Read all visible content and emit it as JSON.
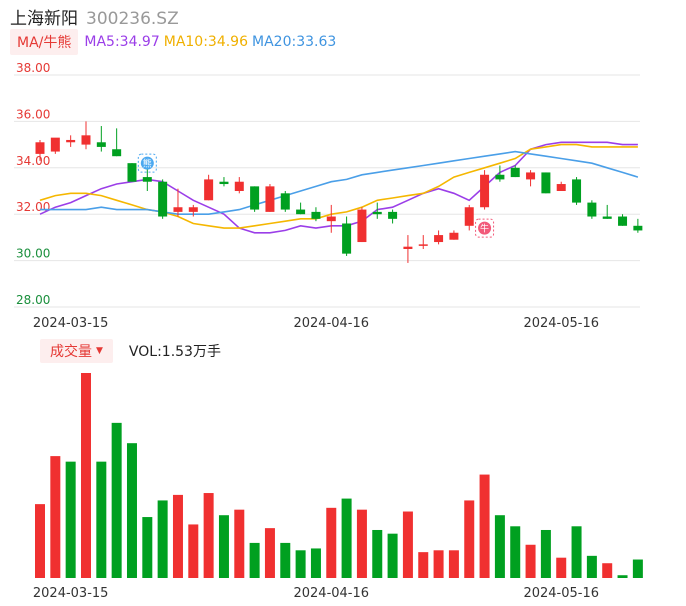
{
  "header": {
    "stock_name": "上海新阳",
    "stock_code": "300236.SZ"
  },
  "ma_legend": {
    "mode_label": "MA/牛熊",
    "ma5": "MA5:34.97",
    "ma10": "MA10:34.96",
    "ma20": "MA20:33.63"
  },
  "volume_legend": {
    "button_label": "成交量",
    "vol_text": "VOL:1.53万手"
  },
  "markers": {
    "bear": "熊",
    "bull": "牛"
  },
  "colors": {
    "up": "#f03030",
    "down": "#00a020",
    "ma5": "#9b3ee8",
    "ma10": "#f5b700",
    "ma20": "#4a9fe8",
    "axis_text_red": "#e53935",
    "axis_text_green": "#1a8f3c",
    "grid": "#e6e6e6"
  },
  "chart_data": [
    {
      "type": "candlestick",
      "ylim": [
        28.0,
        38.0
      ],
      "y_ticks": [
        "38.00",
        "36.00",
        "34.00",
        "32.00",
        "30.00",
        "28.00"
      ],
      "x_tick_labels": [
        "2024-03-15",
        "2024-04-16",
        "2024-05-16"
      ],
      "x_tick_indices": [
        2,
        19,
        34
      ],
      "grid": true,
      "candles": [
        {
          "o": 34.6,
          "h": 35.2,
          "l": 34.3,
          "c": 35.1
        },
        {
          "o": 34.7,
          "h": 35.2,
          "l": 34.6,
          "c": 35.3
        },
        {
          "o": 35.1,
          "h": 35.4,
          "l": 34.9,
          "c": 35.2
        },
        {
          "o": 35.0,
          "h": 36.0,
          "l": 34.8,
          "c": 35.4
        },
        {
          "o": 35.1,
          "h": 35.8,
          "l": 34.7,
          "c": 34.9
        },
        {
          "o": 34.8,
          "h": 35.7,
          "l": 34.5,
          "c": 34.5
        },
        {
          "o": 34.2,
          "h": 34.2,
          "l": 33.4,
          "c": 33.4
        },
        {
          "o": 33.6,
          "h": 34.0,
          "l": 33.0,
          "c": 33.4
        },
        {
          "o": 33.4,
          "h": 33.5,
          "l": 31.8,
          "c": 31.9
        },
        {
          "o": 32.1,
          "h": 33.1,
          "l": 31.9,
          "c": 32.3
        },
        {
          "o": 32.1,
          "h": 32.4,
          "l": 31.9,
          "c": 32.3
        },
        {
          "o": 32.6,
          "h": 33.7,
          "l": 32.6,
          "c": 33.5
        },
        {
          "o": 33.4,
          "h": 33.6,
          "l": 33.2,
          "c": 33.3
        },
        {
          "o": 33.0,
          "h": 33.6,
          "l": 32.9,
          "c": 33.4
        },
        {
          "o": 33.2,
          "h": 33.2,
          "l": 32.1,
          "c": 32.2
        },
        {
          "o": 32.1,
          "h": 33.3,
          "l": 32.1,
          "c": 33.2
        },
        {
          "o": 32.9,
          "h": 33.0,
          "l": 32.1,
          "c": 32.2
        },
        {
          "o": 32.2,
          "h": 32.5,
          "l": 32.0,
          "c": 32.0
        },
        {
          "o": 32.1,
          "h": 32.3,
          "l": 31.7,
          "c": 31.8
        },
        {
          "o": 31.7,
          "h": 32.4,
          "l": 31.2,
          "c": 31.9
        },
        {
          "o": 31.6,
          "h": 31.9,
          "l": 30.2,
          "c": 30.3
        },
        {
          "o": 30.8,
          "h": 32.3,
          "l": 30.8,
          "c": 32.2
        },
        {
          "o": 32.1,
          "h": 32.5,
          "l": 31.8,
          "c": 32.0
        },
        {
          "o": 32.1,
          "h": 32.2,
          "l": 31.6,
          "c": 31.8
        },
        {
          "o": 30.5,
          "h": 31.1,
          "l": 29.9,
          "c": 30.6
        },
        {
          "o": 30.7,
          "h": 31.1,
          "l": 30.5,
          "c": 30.7
        },
        {
          "o": 30.8,
          "h": 31.3,
          "l": 30.7,
          "c": 31.1
        },
        {
          "o": 30.9,
          "h": 31.3,
          "l": 30.9,
          "c": 31.2
        },
        {
          "o": 31.5,
          "h": 32.4,
          "l": 31.3,
          "c": 32.3
        },
        {
          "o": 32.3,
          "h": 33.9,
          "l": 32.2,
          "c": 33.7
        },
        {
          "o": 33.7,
          "h": 34.1,
          "l": 33.4,
          "c": 33.5
        },
        {
          "o": 34.0,
          "h": 34.1,
          "l": 33.6,
          "c": 33.6
        },
        {
          "o": 33.5,
          "h": 33.9,
          "l": 33.2,
          "c": 33.8
        },
        {
          "o": 33.8,
          "h": 33.8,
          "l": 32.9,
          "c": 32.9
        },
        {
          "o": 33.0,
          "h": 33.4,
          "l": 33.0,
          "c": 33.3
        },
        {
          "o": 33.5,
          "h": 33.6,
          "l": 32.4,
          "c": 32.5
        },
        {
          "o": 32.5,
          "h": 32.6,
          "l": 31.8,
          "c": 31.9
        },
        {
          "o": 31.9,
          "h": 32.4,
          "l": 31.8,
          "c": 31.8
        },
        {
          "o": 31.9,
          "h": 32.0,
          "l": 31.5,
          "c": 31.5
        },
        {
          "o": 31.5,
          "h": 31.8,
          "l": 31.2,
          "c": 31.3
        }
      ],
      "series": [
        {
          "name": "MA5",
          "values": [
            32.0,
            32.3,
            32.5,
            32.8,
            33.1,
            33.3,
            33.4,
            33.5,
            33.4,
            33.0,
            32.6,
            32.3,
            32.0,
            31.4,
            31.2,
            31.2,
            31.3,
            31.5,
            31.4,
            31.5,
            31.5,
            31.7,
            32.2,
            32.3,
            32.6,
            32.9,
            33.1,
            32.9,
            32.6,
            33.2,
            33.8,
            34.1,
            34.8,
            35.0,
            35.1,
            35.1,
            35.1,
            35.1,
            35.0,
            35.0
          ]
        },
        {
          "name": "MA10",
          "values": [
            32.6,
            32.8,
            32.9,
            32.9,
            32.8,
            32.6,
            32.4,
            32.2,
            32.1,
            31.9,
            31.6,
            31.5,
            31.4,
            31.4,
            31.5,
            31.6,
            31.7,
            31.8,
            31.8,
            32.0,
            32.1,
            32.3,
            32.6,
            32.7,
            32.8,
            32.9,
            33.2,
            33.6,
            33.8,
            34.0,
            34.2,
            34.4,
            34.8,
            34.9,
            35.0,
            35.0,
            34.9,
            34.9,
            34.9,
            34.9
          ]
        },
        {
          "name": "MA20",
          "values": [
            32.2,
            32.2,
            32.2,
            32.2,
            32.3,
            32.2,
            32.2,
            32.2,
            32.1,
            32.0,
            32.0,
            32.0,
            32.1,
            32.2,
            32.4,
            32.6,
            32.8,
            33.0,
            33.2,
            33.4,
            33.5,
            33.7,
            33.8,
            33.9,
            34.0,
            34.1,
            34.2,
            34.3,
            34.4,
            34.5,
            34.6,
            34.7,
            34.6,
            34.5,
            34.4,
            34.3,
            34.2,
            34.0,
            33.8,
            33.6
          ]
        }
      ],
      "annotations": [
        {
          "label": "熊",
          "index": 7,
          "value": 34.2
        },
        {
          "label": "牛",
          "index": 29,
          "value": 31.4
        }
      ]
    },
    {
      "type": "bar",
      "title": "成交量",
      "x_tick_labels": [
        "2024-03-15",
        "2024-04-16",
        "2024-05-16"
      ],
      "x_tick_indices": [
        2,
        19,
        34
      ],
      "values": [
        4.0,
        6.6,
        6.3,
        11.1,
        6.3,
        8.4,
        7.3,
        3.3,
        4.2,
        4.5,
        2.9,
        4.6,
        3.4,
        3.7,
        1.9,
        2.7,
        1.9,
        1.5,
        1.6,
        3.8,
        4.3,
        3.7,
        2.6,
        2.4,
        3.6,
        1.4,
        1.5,
        1.5,
        4.2,
        5.6,
        3.4,
        2.8,
        1.8,
        2.6,
        1.1,
        2.8,
        1.2,
        0.8,
        0.15,
        1.0
      ],
      "up": [
        true,
        true,
        false,
        true,
        false,
        false,
        false,
        false,
        false,
        true,
        true,
        true,
        false,
        true,
        false,
        true,
        false,
        false,
        false,
        true,
        false,
        true,
        false,
        false,
        true,
        true,
        true,
        true,
        true,
        true,
        false,
        false,
        true,
        false,
        true,
        false,
        false,
        true,
        false,
        false
      ]
    }
  ]
}
